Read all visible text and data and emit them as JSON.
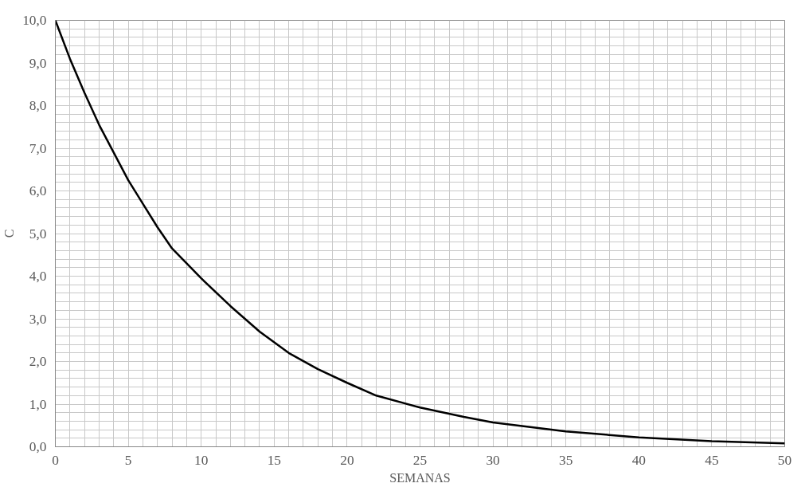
{
  "chart_data": {
    "type": "line",
    "xlabel": "SEMANAS",
    "ylabel": "C",
    "x": [
      0,
      1,
      2,
      3,
      4,
      5,
      6,
      7,
      8,
      9,
      10,
      12,
      14,
      16,
      18,
      20,
      22,
      25,
      28,
      30,
      35,
      40,
      45,
      50
    ],
    "series": [
      {
        "color": "#000000",
        "values": [
          10.0,
          9.1,
          8.3,
          7.55,
          6.9,
          6.25,
          5.7,
          5.15,
          4.65,
          4.3,
          3.95,
          3.3,
          2.7,
          2.2,
          1.82,
          1.5,
          1.2,
          0.92,
          0.7,
          0.57,
          0.36,
          0.22,
          0.13,
          0.08
        ]
      }
    ],
    "xlim": [
      0,
      50
    ],
    "ylim": [
      0,
      10
    ],
    "xticks": [
      0,
      5,
      10,
      15,
      20,
      25,
      30,
      35,
      40,
      45,
      50
    ],
    "yticks": [
      {
        "value": 0,
        "label": "0,0"
      },
      {
        "value": 1,
        "label": "1,0"
      },
      {
        "value": 2,
        "label": "2,0"
      },
      {
        "value": 3,
        "label": "3,0"
      },
      {
        "value": 4,
        "label": "4,0"
      },
      {
        "value": 5,
        "label": "5,0"
      },
      {
        "value": 6,
        "label": "6,0"
      },
      {
        "value": 7,
        "label": "7,0"
      },
      {
        "value": 8,
        "label": "8,0"
      },
      {
        "value": 9,
        "label": "9,0"
      },
      {
        "value": 10,
        "label": "10,0"
      }
    ],
    "grid": true,
    "marker": "none",
    "line_style": "solid"
  }
}
